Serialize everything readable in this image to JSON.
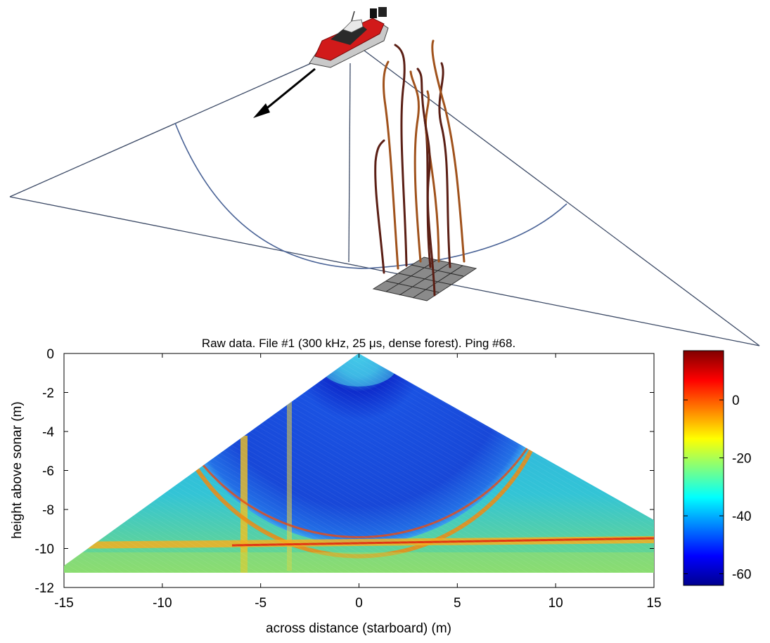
{
  "chart_data": {
    "type": "heatmap",
    "title": "Raw data. File #1 (300 kHz, 25 μs, dense forest). Ping #68.",
    "xlabel": "across distance (starboard) (m)",
    "ylabel": "height above sonar (m)",
    "xlim": [
      -15,
      15
    ],
    "ylim": [
      -12,
      0
    ],
    "x_ticks": [
      "-15",
      "-10",
      "-5",
      "0",
      "5",
      "10",
      "15"
    ],
    "y_ticks": [
      "0",
      "-2",
      "-4",
      "-6",
      "-8",
      "-10",
      "-12"
    ],
    "colorbar": {
      "range": [
        -64,
        17
      ],
      "ticks": [
        "0",
        "-20",
        "-40",
        "-60"
      ],
      "colormap": "jet"
    },
    "swath": {
      "apex": [
        0,
        0
      ],
      "left_edge": [
        -15,
        -11
      ],
      "right_edge": [
        15,
        -8.5
      ],
      "bottom": -11
    },
    "seafloor_ring_radius_m": 9.7,
    "seafloor_depth_m": -9.7,
    "vegetation_stripes_x_m": [
      -5.8,
      -3.3
    ],
    "grid": false
  },
  "colors": {
    "axis": "#000000",
    "beam_lines": "#3c4a66",
    "seafloor_arc": "#4a6396",
    "hull": "#d11a1a",
    "stem_dark": "#5b1f15",
    "stem_light": "#a0521c",
    "grid_patch": "#6b6b6b"
  }
}
